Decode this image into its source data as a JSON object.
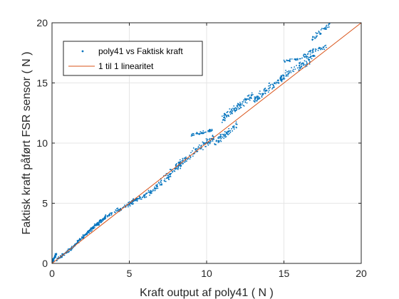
{
  "chart_data": {
    "type": "scatter",
    "title": "",
    "xlabel": "Kraft output af poly41 ( N )",
    "ylabel": "Faktisk kraft påført FSR sensor ( N )",
    "xlim": [
      0,
      20
    ],
    "ylim": [
      0,
      20
    ],
    "xticks": [
      0,
      5,
      10,
      15,
      20
    ],
    "yticks": [
      0,
      5,
      10,
      15,
      20
    ],
    "grid": true,
    "legend_position": "top-left",
    "colors": {
      "scatter": "#0072BD",
      "line": "#D95319"
    },
    "series": [
      {
        "name": "poly41 vs Faktisk kraft",
        "kind": "scatter",
        "segments": [
          {
            "x": [
              0.0,
              0.3
            ],
            "y": [
              0.05,
              0.85
            ],
            "n": 60,
            "spread": 0.25
          },
          {
            "x": [
              0.3,
              1.5
            ],
            "y": [
              0.3,
              1.5
            ],
            "n": 70,
            "spread": 0.2
          },
          {
            "x": [
              1.5,
              2.5
            ],
            "y": [
              1.6,
              2.8
            ],
            "n": 80,
            "spread": 0.2
          },
          {
            "x": [
              2.5,
              3.5
            ],
            "y": [
              2.8,
              3.9
            ],
            "n": 90,
            "spread": 0.25
          },
          {
            "x": [
              3.5,
              5.5
            ],
            "y": [
              3.9,
              5.3
            ],
            "n": 80,
            "spread": 0.25
          },
          {
            "x": [
              5.0,
              6.5
            ],
            "y": [
              5.0,
              6.0
            ],
            "n": 60,
            "spread": 0.3
          },
          {
            "x": [
              6.5,
              8.5
            ],
            "y": [
              6.0,
              8.5
            ],
            "n": 90,
            "spread": 0.5
          },
          {
            "x": [
              8.0,
              10.5
            ],
            "y": [
              8.0,
              10.5
            ],
            "n": 110,
            "spread": 0.5
          },
          {
            "x": [
              9.0,
              10.4
            ],
            "y": [
              10.6,
              11.1
            ],
            "n": 50,
            "spread": 0.2
          },
          {
            "x": [
              10.5,
              12.0
            ],
            "y": [
              10.0,
              11.5
            ],
            "n": 70,
            "spread": 0.5
          },
          {
            "x": [
              11.0,
              13.0
            ],
            "y": [
              12.0,
              14.0
            ],
            "n": 110,
            "spread": 0.5
          },
          {
            "x": [
              13.0,
              15.0
            ],
            "y": [
              13.5,
              15.5
            ],
            "n": 100,
            "spread": 0.5
          },
          {
            "x": [
              14.8,
              16.8
            ],
            "y": [
              15.5,
              16.9
            ],
            "n": 80,
            "spread": 0.45
          },
          {
            "x": [
              15.0,
              17.0
            ],
            "y": [
              16.8,
              17.3
            ],
            "n": 50,
            "spread": 0.2
          },
          {
            "x": [
              16.2,
              17.8
            ],
            "y": [
              17.3,
              18.1
            ],
            "n": 40,
            "spread": 0.3
          },
          {
            "x": [
              16.8,
              18.0
            ],
            "y": [
              18.6,
              19.9
            ],
            "n": 40,
            "spread": 0.4
          }
        ]
      },
      {
        "name": "1 til 1 linearitet",
        "kind": "line",
        "x": [
          0,
          20
        ],
        "y": [
          0,
          20
        ]
      }
    ]
  }
}
